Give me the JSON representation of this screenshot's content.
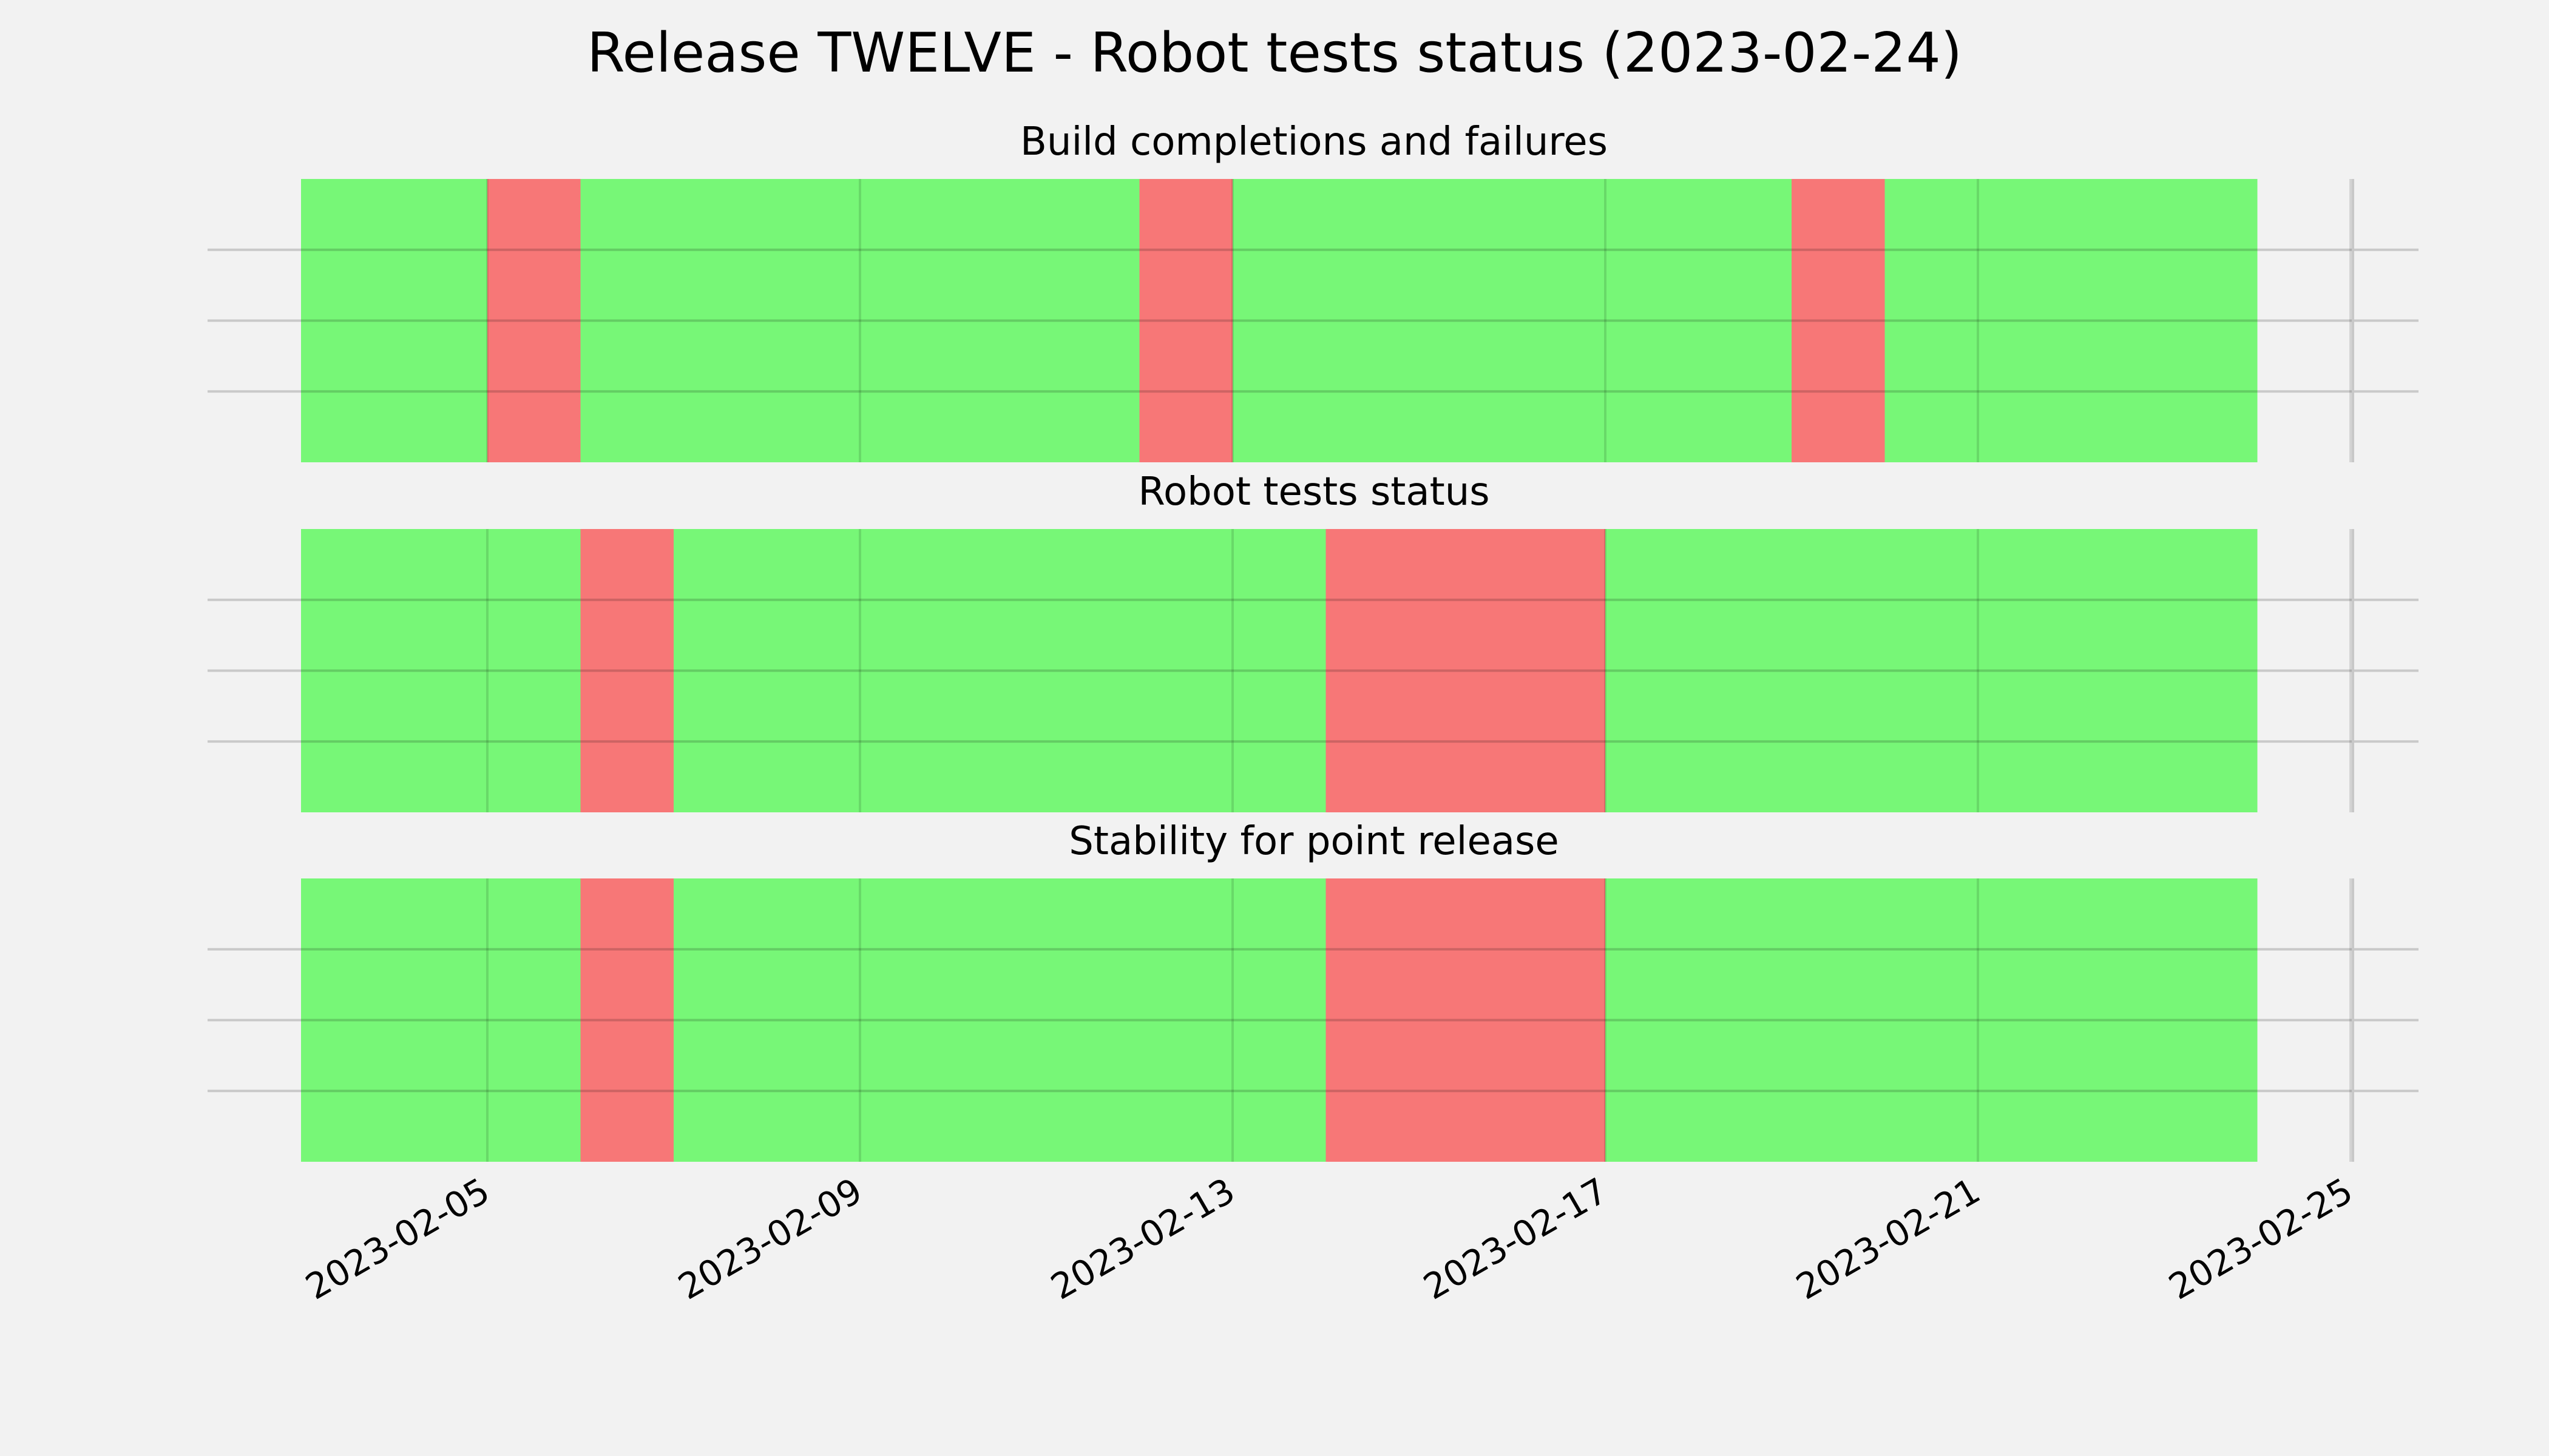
{
  "chart_data": {
    "type": "bar",
    "title": "Release TWELVE - Robot tests status (2023-02-24)",
    "x_range": [
      "2023-02-03",
      "2023-02-25"
    ],
    "x_ticks": [
      "2023-02-05",
      "2023-02-09",
      "2023-02-13",
      "2023-02-17",
      "2023-02-21",
      "2023-02-25"
    ],
    "grid": true,
    "colors": {
      "pass": "#77f777",
      "fail": "#f77777",
      "background": "#f2f2f2",
      "grid": "#cccccc"
    },
    "panels": [
      {
        "title": "Build completions and failures",
        "segments": [
          {
            "start": "2023-02-03",
            "end": "2023-02-05",
            "status": "pass"
          },
          {
            "start": "2023-02-05",
            "end": "2023-02-06",
            "status": "fail"
          },
          {
            "start": "2023-02-06",
            "end": "2023-02-12",
            "status": "pass"
          },
          {
            "start": "2023-02-12",
            "end": "2023-02-13",
            "status": "fail"
          },
          {
            "start": "2023-02-13",
            "end": "2023-02-19",
            "status": "pass"
          },
          {
            "start": "2023-02-19",
            "end": "2023-02-20",
            "status": "fail"
          },
          {
            "start": "2023-02-20",
            "end": "2023-02-24",
            "status": "pass"
          }
        ]
      },
      {
        "title": "Robot tests status",
        "segments": [
          {
            "start": "2023-02-03",
            "end": "2023-02-06",
            "status": "pass"
          },
          {
            "start": "2023-02-06",
            "end": "2023-02-07",
            "status": "fail"
          },
          {
            "start": "2023-02-07",
            "end": "2023-02-14",
            "status": "pass"
          },
          {
            "start": "2023-02-14",
            "end": "2023-02-17",
            "status": "fail"
          },
          {
            "start": "2023-02-17",
            "end": "2023-02-24",
            "status": "pass"
          }
        ]
      },
      {
        "title": "Stability for point release",
        "segments": [
          {
            "start": "2023-02-03",
            "end": "2023-02-06",
            "status": "pass"
          },
          {
            "start": "2023-02-06",
            "end": "2023-02-07",
            "status": "fail"
          },
          {
            "start": "2023-02-07",
            "end": "2023-02-14",
            "status": "pass"
          },
          {
            "start": "2023-02-14",
            "end": "2023-02-17",
            "status": "fail"
          },
          {
            "start": "2023-02-17",
            "end": "2023-02-24",
            "status": "pass"
          }
        ]
      }
    ]
  }
}
